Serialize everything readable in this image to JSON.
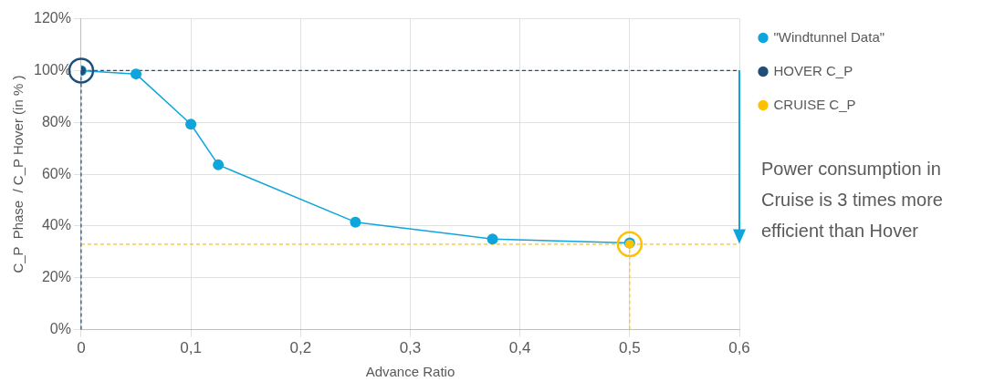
{
  "chart_data": {
    "type": "line",
    "xlabel": "Advance Ratio",
    "ylabel": "C_P  Phase  / C_P Hover (in % )",
    "series": [
      {
        "name": "\"Windtunnel Data\"",
        "color": "#0ea5dc",
        "x": [
          0,
          0.05,
          0.1,
          0.125,
          0.25,
          0.375,
          0.5
        ],
        "values": [
          100,
          98.7,
          79.3,
          63.6,
          41.5,
          35,
          33.5
        ]
      },
      {
        "name": "HOVER C_P",
        "type": "scatter",
        "color": "#1f4e79",
        "x": [
          0
        ],
        "values": [
          100
        ]
      },
      {
        "name": "CRUISE C_P",
        "type": "scatter",
        "color": "#ffc000",
        "x": [
          0.5
        ],
        "values": [
          33
        ]
      }
    ],
    "xlim": [
      0,
      0.6
    ],
    "xticks": [
      0,
      {
        "value": 0.1,
        "label": "0,1"
      },
      {
        "value": 0.2,
        "label": "0,2"
      },
      {
        "value": 0.3,
        "label": "0,3"
      },
      {
        "value": 0.4,
        "label": "0,4"
      },
      {
        "value": 0.5,
        "label": "0,5"
      },
      {
        "value": 0.6,
        "label": "0,6"
      }
    ],
    "ylim": [
      0,
      120
    ],
    "yticks": [
      {
        "value": 0,
        "label": "0%"
      },
      {
        "value": 20,
        "label": "20%"
      },
      {
        "value": 40,
        "label": "40%"
      },
      {
        "value": 60,
        "label": "60%"
      },
      {
        "value": 80,
        "label": "80%"
      },
      {
        "value": 100,
        "label": "100%"
      },
      {
        "value": 120,
        "label": "120%"
      }
    ],
    "ref_lines": [
      {
        "axis": "y",
        "value": 100,
        "color": "#1f4e79",
        "line_style": "dashed"
      },
      {
        "axis": "x",
        "value": 0,
        "color": "#1f4e79",
        "line_style": "dashed"
      },
      {
        "axis": "y",
        "value": 33,
        "color": "#ffc000",
        "line_style": "dashed"
      },
      {
        "axis": "x",
        "value": 0.5,
        "color": "#ffc000",
        "line_style": "dashed"
      }
    ],
    "annotations": [
      "Power consumption in Cruise is 3 times more efficient than Hover"
    ],
    "grid": true,
    "legend": "right",
    "marker": "circle",
    "line_style": "solid"
  }
}
